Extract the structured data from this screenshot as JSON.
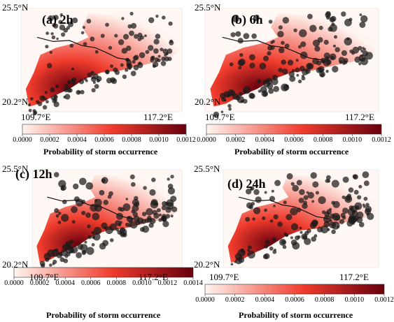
{
  "panels": [
    {
      "label": "(a) 2h",
      "lat_top": "25.5°N",
      "lat_bottom": "20.2°N",
      "lon_left": "109.7°E",
      "lon_right": "117.2°E",
      "colorbar_ticks": [
        "0.0000",
        "0.0002",
        "0.0004",
        "0.0006",
        "0.0008",
        "0.0010",
        "0.0012"
      ],
      "colorbar_title": "Probability of storm occurrence"
    },
    {
      "label": "(b) 6h",
      "lat_top": "25.5°N",
      "lat_bottom": "20.2°N",
      "lon_left": "109.7°E",
      "lon_right": "117.2°E",
      "colorbar_ticks": [
        "0.0000",
        "0.0002",
        "0.0004",
        "0.0006",
        "0.0008",
        "0.0010",
        "0.0012"
      ],
      "colorbar_title": "Probability of storm occurrence"
    },
    {
      "label": "(c) 12h",
      "lat_top": "25.5°N",
      "lat_bottom": "20.2°N",
      "lon_left": "109.7°E",
      "lon_right": "117.2°E",
      "colorbar_ticks": [
        "0.0000",
        "0.0002",
        "0.0004",
        "0.0006",
        "0.0008",
        "0.0010",
        "0.0012",
        "0.0014"
      ],
      "colorbar_title": "Probability of storm occurrence"
    },
    {
      "label": "(d) 24h",
      "lat_top": "25.5°N",
      "lat_bottom": "20.2°N",
      "lon_left": "109.7°E",
      "lon_right": "117.2°E",
      "colorbar_ticks": [
        "0.0000",
        "0.0002",
        "0.0004",
        "0.0006",
        "0.0008",
        "0.0010",
        "0.0012"
      ],
      "colorbar_title": "Probability of storm occurrence"
    }
  ],
  "colors": {
    "colormap_low": "#fff5f0",
    "colormap_mid": "#ef3b2c",
    "colormap_high": "#67000d",
    "storm_points": "#1a1a1a"
  }
}
